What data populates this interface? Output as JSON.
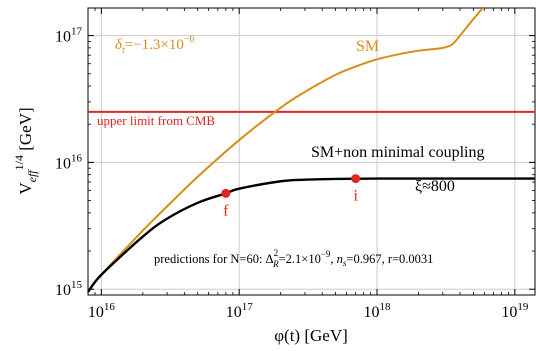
{
  "chart_data": {
    "type": "line",
    "xlabel": "φ(t) [GeV]",
    "ylabel": "V_eff^1/4 [GeV]",
    "x_scale": "log",
    "y_scale": "log",
    "xlim": [
      8000000000000000.0,
      1.4e+19
    ],
    "ylim": [
      900000000000000.0,
      1.65e+17
    ],
    "grid": true,
    "x_ticks": [
      {
        "value": 1e+16,
        "label": "10^16"
      },
      {
        "value": 1e+17,
        "label": "10^17"
      },
      {
        "value": 1e+18,
        "label": "10^18"
      },
      {
        "value": 1e+19,
        "label": "10^19"
      }
    ],
    "y_ticks": [
      {
        "value": 1000000000000000.0,
        "label": "10^15"
      },
      {
        "value": 1e+16,
        "label": "10^16"
      },
      {
        "value": 1e+17,
        "label": "10^17"
      }
    ],
    "series": [
      {
        "name": "SM",
        "color": "#d98c1a",
        "x": [
          8000000000000000.0,
          1e+16,
          2e+16,
          3e+16,
          5e+16,
          1e+17,
          2e+17,
          3e+17,
          5e+17,
          7e+17,
          1e+18,
          1.5e+18,
          2e+18,
          2.5e+18,
          3e+18,
          3.5e+18,
          4e+18,
          5e+18,
          6e+18
        ],
        "y": [
          950000000000000.0,
          1300000000000000.0,
          2900000000000000.0,
          4500000000000000.0,
          7700000000000000.0,
          1.5e+16,
          2.7e+16,
          3.6e+16,
          4.9e+16,
          5.7e+16,
          6.5e+16,
          7.2e+16,
          7.6e+16,
          7.8e+16,
          8e+16,
          8.5e+16,
          1e+17,
          1.35e+17,
          1.7e+17
        ]
      },
      {
        "name": "SM+non minimal coupling",
        "color": "#000000",
        "x": [
          8000000000000000.0,
          1e+16,
          2e+16,
          3e+16,
          5e+16,
          8e+16,
          1e+17,
          2e+17,
          3e+17,
          5e+17,
          1e+18,
          2e+18,
          5e+18,
          1e+19,
          1.4e+19
        ],
        "y": [
          950000000000000.0,
          1300000000000000.0,
          2600000000000000.0,
          3600000000000000.0,
          4800000000000000.0,
          5700000000000000.0,
          6200000000000000.0,
          7100000000000000.0,
          7300000000000000.0,
          7400000000000000.0,
          7450000000000000.0,
          7450000000000000.0,
          7450000000000000.0,
          7450000000000000.0,
          7450000000000000.0
        ]
      }
    ],
    "hlines": [
      {
        "name": "upper limit from CMB",
        "y": 2.5e+16,
        "color": "#e0261e"
      }
    ],
    "points": [
      {
        "label": "f",
        "x": 8e+16,
        "y": 5700000000000000.0,
        "color": "#e0261e"
      },
      {
        "label": "i",
        "x": 7e+17,
        "y": 7450000000000000.0,
        "color": "#e0261e"
      }
    ],
    "annotations": {
      "delta_prefix": "δ",
      "delta_sub": "t",
      "delta_value": "=−1.3×10",
      "delta_exp": "−6",
      "sm_label": "SM",
      "cmb_label": "upper limit from CMB",
      "nmc_label": "SM+non minimal coupling",
      "xi_label": "ξ≈800",
      "pred_prefix": "predictions for N=60: Δ",
      "pred_sup": "2",
      "pred_sub": "R",
      "pred_mid": "=2.1×10",
      "pred_exp": "−9",
      "pred_ns_sym": "n",
      "pred_ns_sub": "s",
      "pred_ns_val": "=0.967, r=0.0031"
    },
    "colors": {
      "sm": "#d98c1a",
      "nmc": "#000000",
      "cmb": "#e0261e",
      "grid": "#cccccc",
      "frame": "#000000"
    }
  }
}
